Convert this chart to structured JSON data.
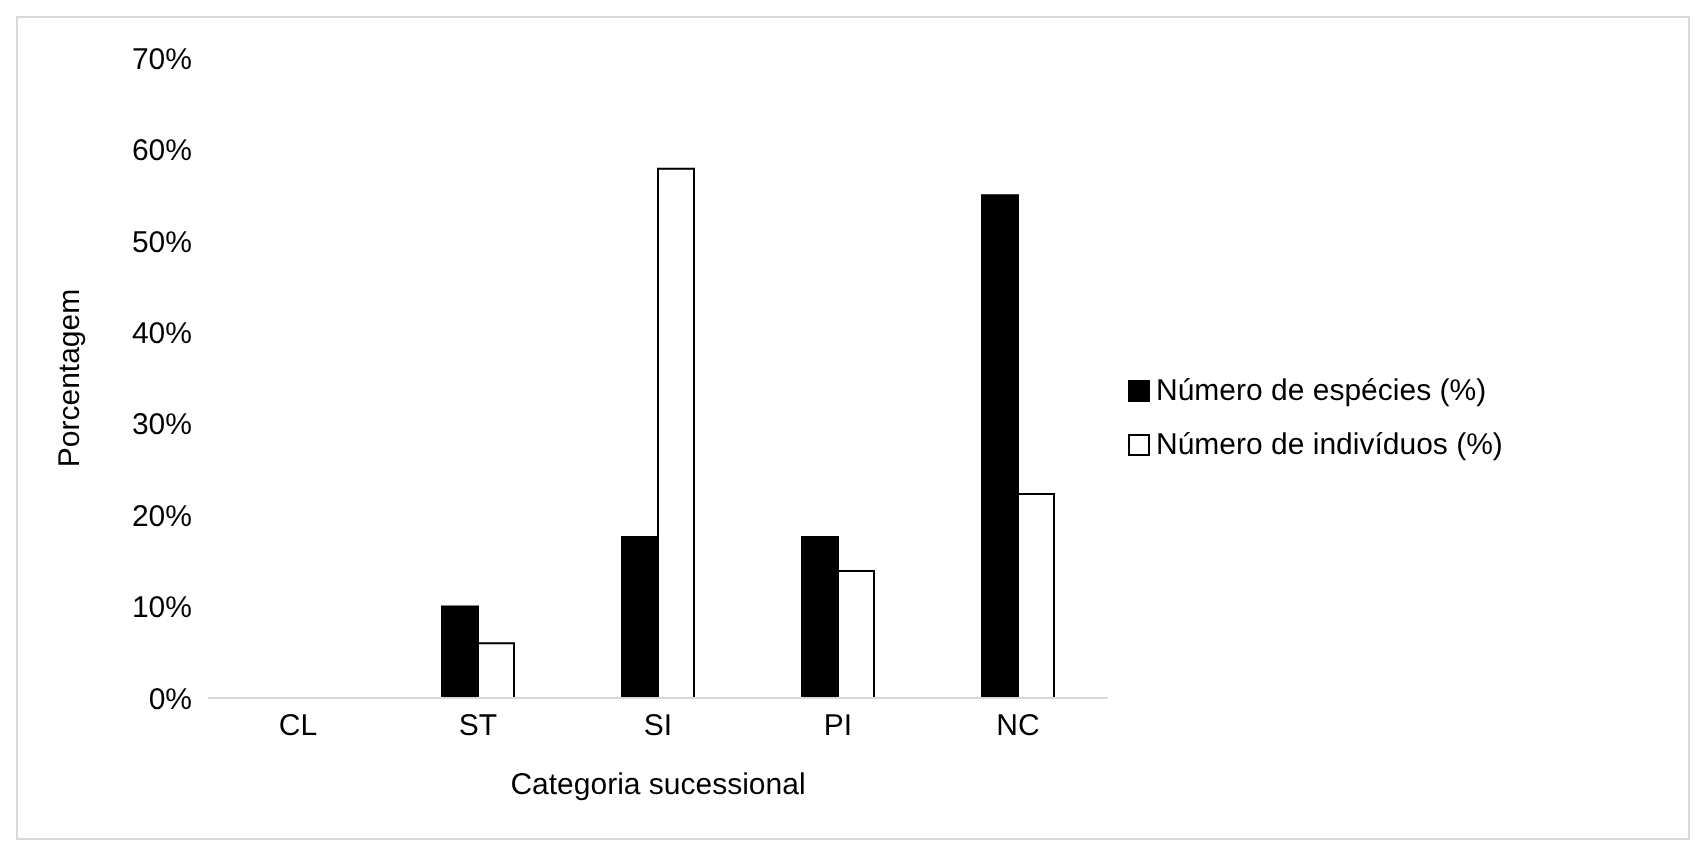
{
  "chart_data": {
    "type": "bar",
    "xlabel": "Categoria sucessional",
    "ylabel": "Porcentagem",
    "categories": [
      "CL",
      "ST",
      "SI",
      "PI",
      "NC"
    ],
    "series": [
      {
        "name": "Número de espécies (%)",
        "color": "#000000",
        "values": [
          0,
          10,
          17.6,
          17.6,
          55
        ]
      },
      {
        "name": "Número de indivíduos (%)",
        "color": "#ffffff",
        "values": [
          0,
          6,
          57.9,
          13.9,
          22.3
        ]
      }
    ],
    "ylim": [
      0,
      70
    ],
    "yticks": [
      {
        "value": 0,
        "label": "0%"
      },
      {
        "value": 10,
        "label": "10%"
      },
      {
        "value": 20,
        "label": "20%"
      },
      {
        "value": 30,
        "label": "30%"
      },
      {
        "value": 40,
        "label": "40%"
      },
      {
        "value": 50,
        "label": "50%"
      },
      {
        "value": 60,
        "label": "60%"
      },
      {
        "value": 70,
        "label": "70%"
      }
    ],
    "grid": false,
    "legend": "right"
  }
}
